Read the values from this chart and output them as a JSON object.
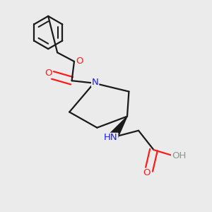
{
  "bg_color": "#ebebeb",
  "atom_colors": {
    "C": "#1a1a1a",
    "N": "#1919ff",
    "O": "#ff1a1a",
    "H": "#8a9a8a"
  },
  "bond_color": "#1a1a1a",
  "bond_width": 1.6,
  "title": ""
}
